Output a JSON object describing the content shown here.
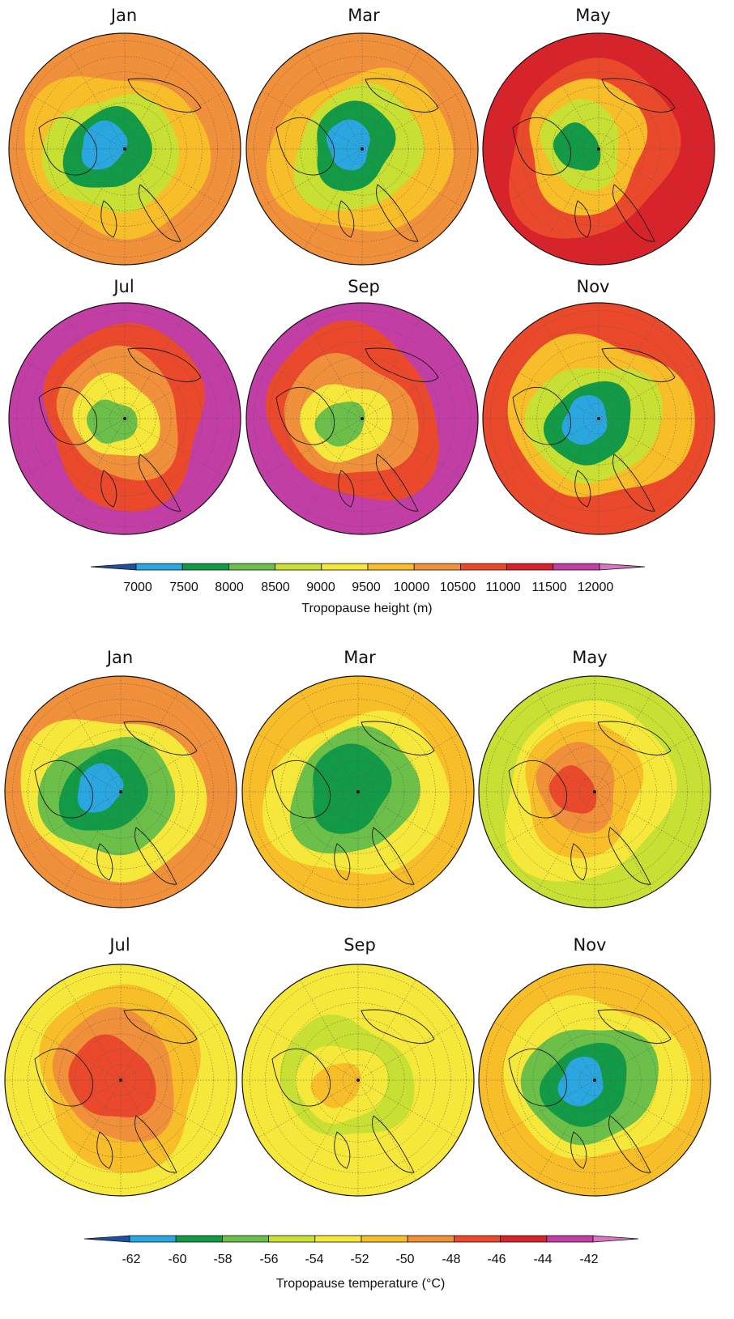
{
  "height_section": {
    "months": [
      "Jan",
      "Mar",
      "May",
      "Jul",
      "Sep",
      "Nov"
    ],
    "colorbar": {
      "levels": [
        "7000",
        "7500",
        "8000",
        "8500",
        "9000",
        "9500",
        "10000",
        "10500",
        "11000",
        "11500",
        "12000"
      ],
      "colors": [
        "#1f4fa0",
        "#2aa7e0",
        "#139a46",
        "#6cc04a",
        "#c8e033",
        "#f6e83a",
        "#f8be2a",
        "#f1903a",
        "#ea4a2b",
        "#d9232b",
        "#c23ea4",
        "#d774c4"
      ],
      "title": "Tropopause height (m)"
    }
  },
  "temperature_section": {
    "months": [
      "Jan",
      "Mar",
      "May",
      "Jul",
      "Sep",
      "Nov"
    ],
    "colorbar": {
      "levels": [
        "-62",
        "-60",
        "-58",
        "-56",
        "-54",
        "-52",
        "-50",
        "-48",
        "-46",
        "-44",
        "-42"
      ],
      "colors": [
        "#1f4fa0",
        "#2aa7e0",
        "#139a46",
        "#6cc04a",
        "#c8e033",
        "#f6e83a",
        "#f8be2a",
        "#f1903a",
        "#ea4a2b",
        "#d9232b",
        "#c23ea4",
        "#d774c4"
      ],
      "title": "Tropopause temperature (°C)"
    }
  },
  "field_levels": {
    "height_maps": [
      [
        7,
        6,
        4,
        2,
        1
      ],
      [
        7,
        6,
        4,
        2,
        1
      ],
      [
        9,
        8,
        6,
        4,
        2
      ],
      [
        10,
        8,
        7,
        5,
        3
      ],
      [
        10,
        8,
        7,
        5,
        3
      ],
      [
        8,
        6,
        4,
        2,
        1
      ]
    ],
    "temperature_maps": [
      [
        7,
        5,
        3,
        2,
        1
      ],
      [
        6,
        5,
        3,
        2,
        2
      ],
      [
        4,
        5,
        6,
        7,
        8
      ],
      [
        5,
        6,
        7,
        8,
        8
      ],
      [
        5,
        5,
        4,
        5,
        6
      ],
      [
        6,
        5,
        3,
        2,
        1
      ]
    ]
  }
}
